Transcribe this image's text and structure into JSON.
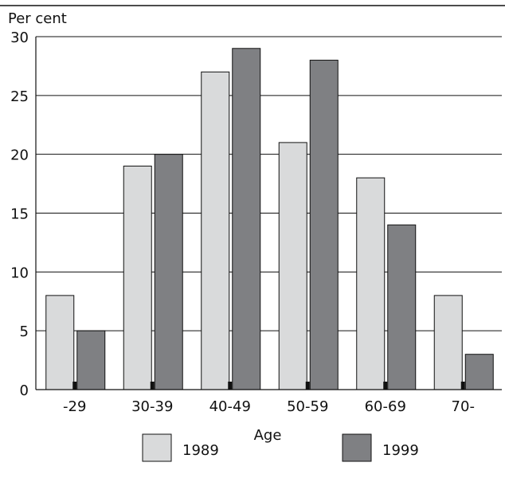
{
  "chart_data": {
    "type": "bar",
    "ylabel": "Per cent",
    "xlabel": "Age",
    "categories": [
      "-29",
      "30-39",
      "40-49",
      "50-59",
      "60-69",
      "70-"
    ],
    "series": [
      {
        "name": "1989",
        "values": [
          8,
          19,
          27,
          21,
          18,
          8
        ],
        "color": "#d9dadb"
      },
      {
        "name": "1999",
        "values": [
          5,
          20,
          29,
          28,
          14,
          3
        ],
        "color": "#7f8083"
      }
    ],
    "ylim": [
      0,
      30
    ],
    "yticks": [
      0,
      5,
      10,
      15,
      20,
      25,
      30
    ],
    "grid": true,
    "legend": "bottom"
  }
}
